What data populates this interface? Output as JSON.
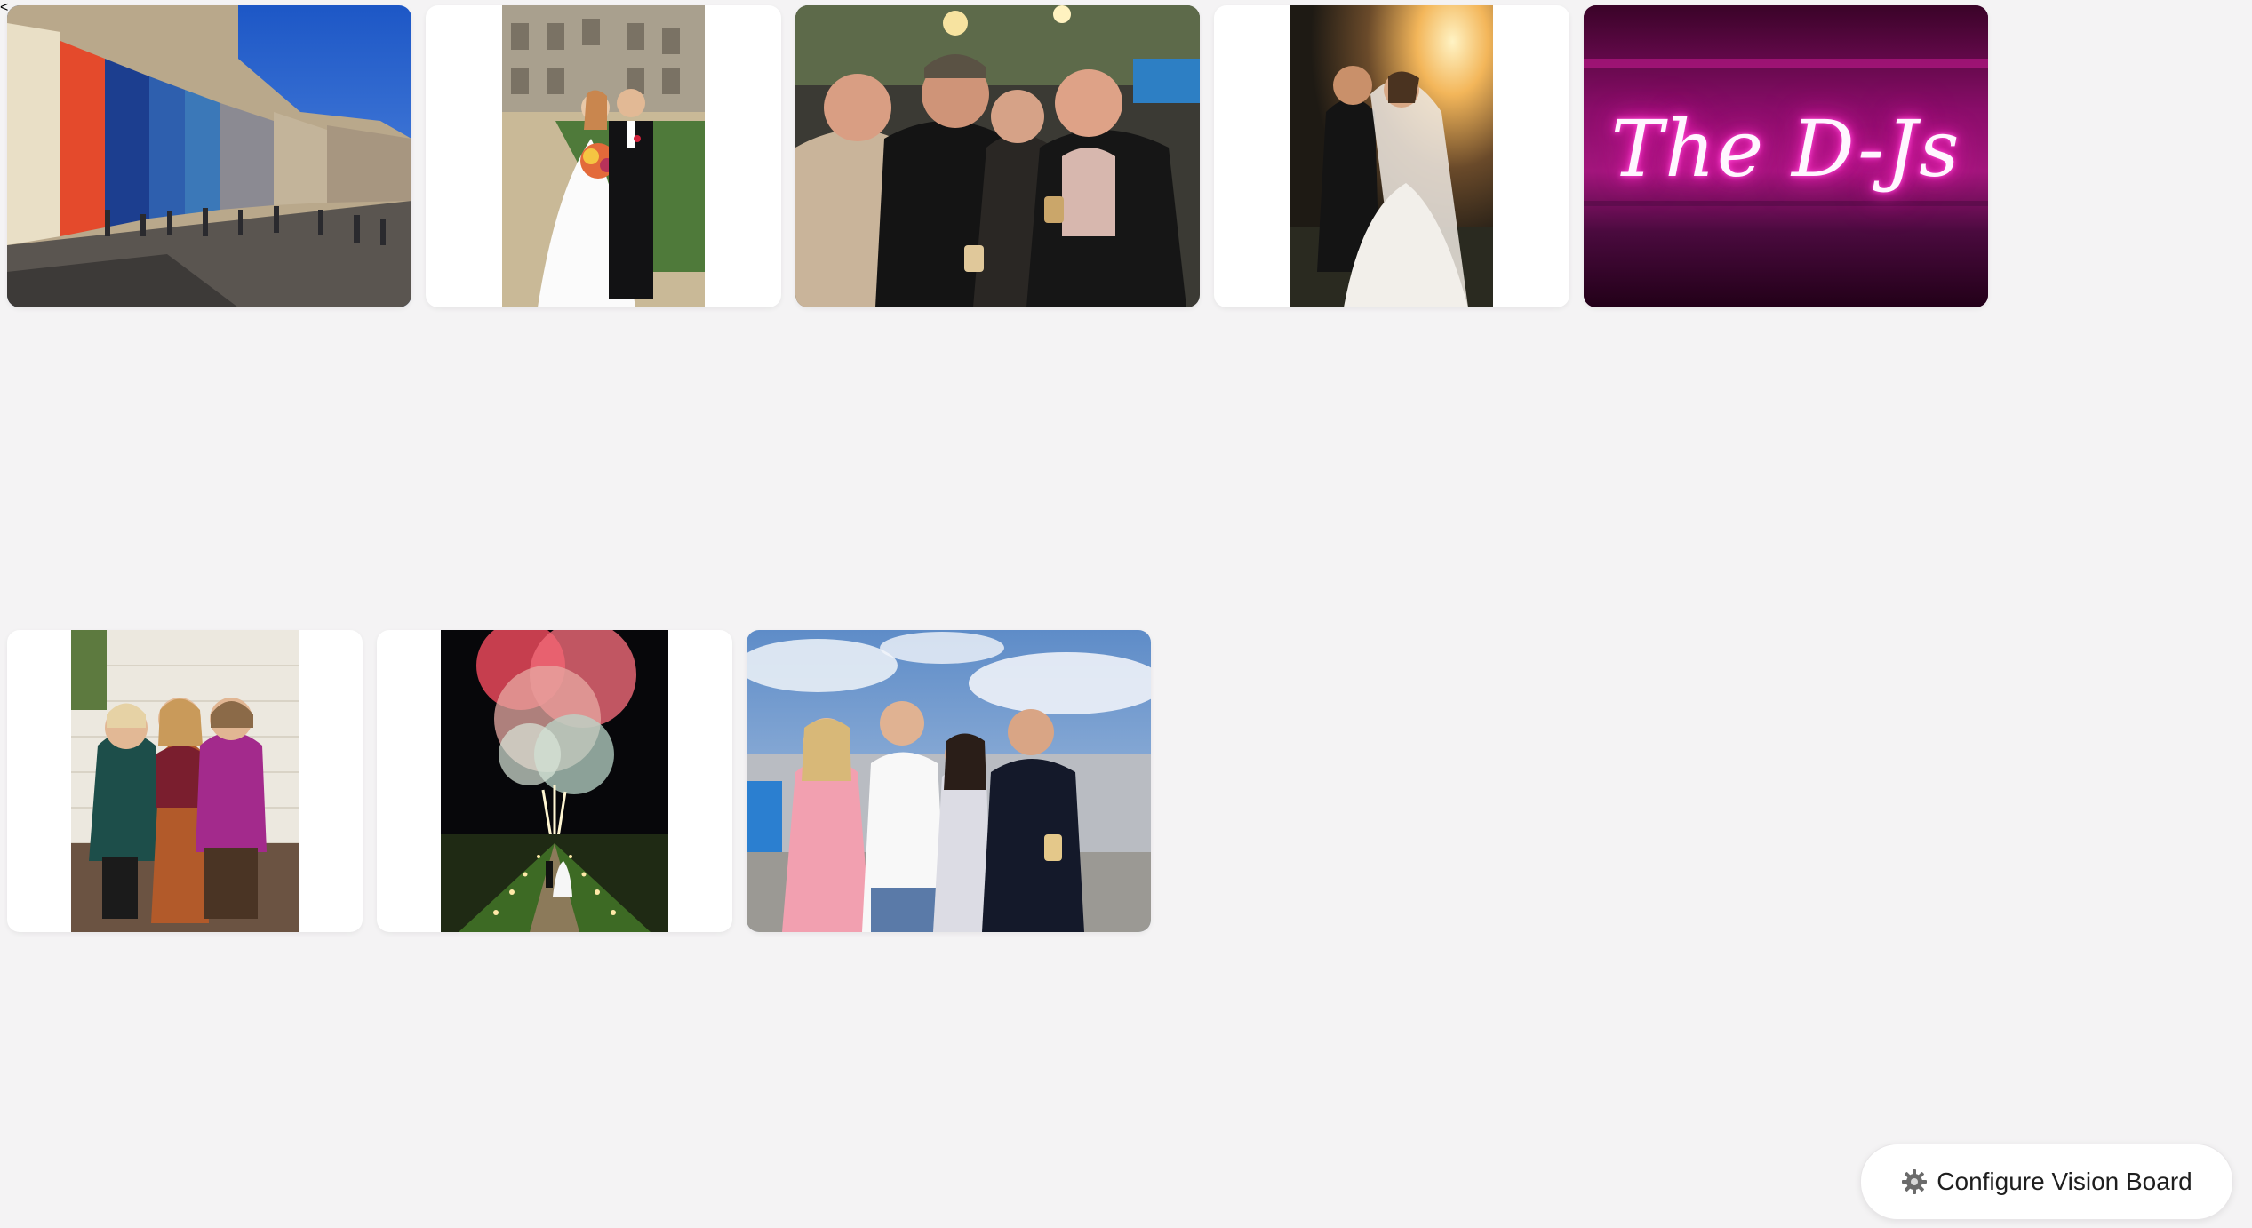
{
  "board": {
    "photos": [
      {
        "id": "photo-street",
        "alt": "street"
      },
      {
        "id": "photo-wedding-castle",
        "alt": "wedding castle"
      },
      {
        "id": "photo-group-men",
        "alt": "group"
      },
      {
        "id": "photo-sunset-couple",
        "alt": "sunset couple"
      },
      {
        "id": "photo-neon-sign",
        "alt": "neon sign",
        "sign_text": "The D-Js"
      },
      {
        "id": "photo-three-women",
        "alt": "three women"
      },
      {
        "id": "photo-fireworks",
        "alt": "fireworks"
      },
      {
        "id": "photo-friends-outdoors",
        "alt": "friends"
      }
    ]
  },
  "configure_button": {
    "label": "Configure Vision Board",
    "icon": "gear-icon"
  },
  "colors": {
    "background": "#f4f3f4",
    "card": "#ffffff",
    "neon_pink": "#ff2ec4"
  }
}
